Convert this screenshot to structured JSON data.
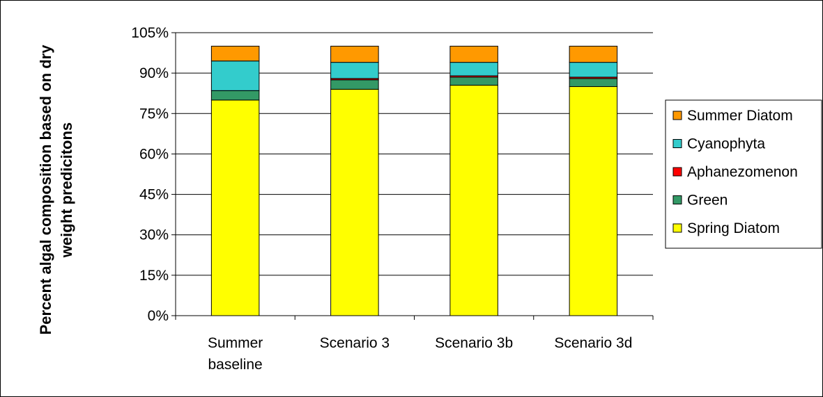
{
  "chart_data": {
    "type": "bar",
    "stacked": true,
    "categories": [
      [
        "Summer",
        "baseline"
      ],
      [
        "Scenario 3"
      ],
      [
        "Scenario 3b"
      ],
      [
        "Scenario 3d"
      ]
    ],
    "ylabel_lines": [
      "Percent algal composition based on dry",
      "weight predicitons"
    ],
    "xlabel": "",
    "ylim": [
      0,
      105
    ],
    "yticks": [
      "0%",
      "15%",
      "30%",
      "45%",
      "60%",
      "75%",
      "90%",
      "105%"
    ],
    "ytick_values": [
      0,
      15,
      30,
      45,
      60,
      75,
      90,
      105
    ],
    "grid": true,
    "legend_position": "right",
    "series": [
      {
        "name": "Spring Diatom",
        "color": "#FFFF00",
        "values": [
          80.0,
          84.0,
          85.5,
          85.0
        ]
      },
      {
        "name": "Green",
        "color": "#339966",
        "values": [
          3.5,
          3.5,
          3.0,
          3.0
        ]
      },
      {
        "name": "Aphanezomenon",
        "color": "#FF0000",
        "values": [
          0.0,
          0.5,
          0.5,
          0.5
        ]
      },
      {
        "name": "Cyanophyta",
        "color": "#33CCCC",
        "values": [
          11.0,
          6.0,
          5.0,
          5.5
        ]
      },
      {
        "name": "Summer Diatom",
        "color": "#FF9900",
        "values": [
          5.5,
          6.0,
          6.0,
          6.0
        ]
      }
    ],
    "legend_order": [
      "Summer Diatom",
      "Cyanophyta",
      "Aphanezomenon",
      "Green",
      "Spring Diatom"
    ]
  }
}
